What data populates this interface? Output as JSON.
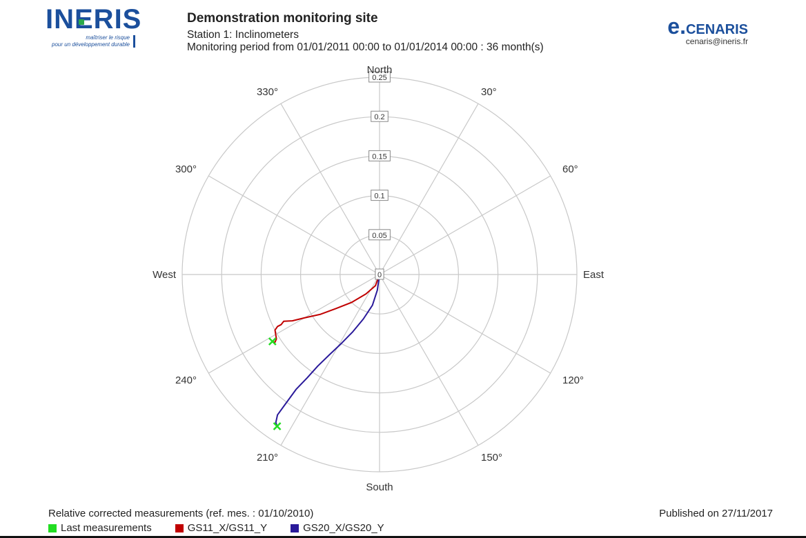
{
  "header": {
    "logo": {
      "name": "INERIS",
      "tagline_1": "maîtriser le risque",
      "tagline_2": "pour un développement durable"
    },
    "title": "Demonstration monitoring site",
    "station": "Station 1: Inclinometers",
    "period": "Monitoring period from 01/01/2011 00:00 to 01/01/2014 00:00 : 36 month(s)",
    "brand": {
      "prefix": "e.",
      "name": "CENARIS",
      "email": "cenaris@ineris.fr"
    }
  },
  "chart_data": {
    "type": "polar-line",
    "direction_labels": {
      "north": "North",
      "east": "East",
      "south": "South",
      "west": "West"
    },
    "angle_labels": [
      "30°",
      "60°",
      "120°",
      "150°",
      "210°",
      "240°",
      "300°",
      "330°"
    ],
    "radial_ticks": [
      "0",
      "0.05",
      "0.1",
      "0.15",
      "0.2",
      "0.25"
    ],
    "rlim": [
      0,
      0.25
    ],
    "angle_convention": "degrees clockwise from North",
    "grid": true,
    "series": [
      {
        "name": "GS11_X/GS11_Y",
        "color": "#c00000",
        "points": [
          {
            "angle": 180,
            "r": 0.0
          },
          {
            "angle": 200,
            "r": 0.015
          },
          {
            "angle": 215,
            "r": 0.03
          },
          {
            "angle": 225,
            "r": 0.05
          },
          {
            "angle": 232,
            "r": 0.07
          },
          {
            "angle": 236,
            "r": 0.09
          },
          {
            "angle": 240,
            "r": 0.11
          },
          {
            "angle": 242,
            "r": 0.125
          },
          {
            "angle": 244,
            "r": 0.135
          },
          {
            "angle": 243,
            "r": 0.14
          },
          {
            "angle": 243,
            "r": 0.145
          },
          {
            "angle": 242,
            "r": 0.15
          },
          {
            "angle": 238,
            "r": 0.154
          },
          {
            "angle": 237,
            "r": 0.158
          },
          {
            "angle": 238,
            "r": 0.16
          }
        ]
      },
      {
        "name": "GS20_X/GS20_Y",
        "color": "#2a1a9a",
        "points": [
          {
            "angle": 180,
            "r": 0.0
          },
          {
            "angle": 188,
            "r": 0.02
          },
          {
            "angle": 193,
            "r": 0.04
          },
          {
            "angle": 200,
            "r": 0.06
          },
          {
            "angle": 205,
            "r": 0.08
          },
          {
            "angle": 209,
            "r": 0.1
          },
          {
            "angle": 212,
            "r": 0.12
          },
          {
            "angle": 214,
            "r": 0.14
          },
          {
            "angle": 215,
            "r": 0.16
          },
          {
            "angle": 216,
            "r": 0.18
          },
          {
            "angle": 216,
            "r": 0.2
          },
          {
            "angle": 216,
            "r": 0.22
          },
          {
            "angle": 215,
            "r": 0.229
          },
          {
            "angle": 214,
            "r": 0.232
          }
        ]
      }
    ],
    "last_measurements": [
      {
        "series": "GS11_X/GS11_Y",
        "angle": 238,
        "r": 0.16
      },
      {
        "series": "GS20_X/GS20_Y",
        "angle": 214,
        "r": 0.232
      }
    ],
    "last_color": "#22dd22"
  },
  "footer": {
    "note": "Relative corrected measurements (ref. mes. : 01/10/2010)",
    "published": "Published on 27/11/2017"
  },
  "legend": [
    {
      "label": "Last measurements",
      "color": "#22dd22"
    },
    {
      "label": "GS11_X/GS11_Y",
      "color": "#c00000"
    },
    {
      "label": "GS20_X/GS20_Y",
      "color": "#2a1a9a"
    }
  ]
}
